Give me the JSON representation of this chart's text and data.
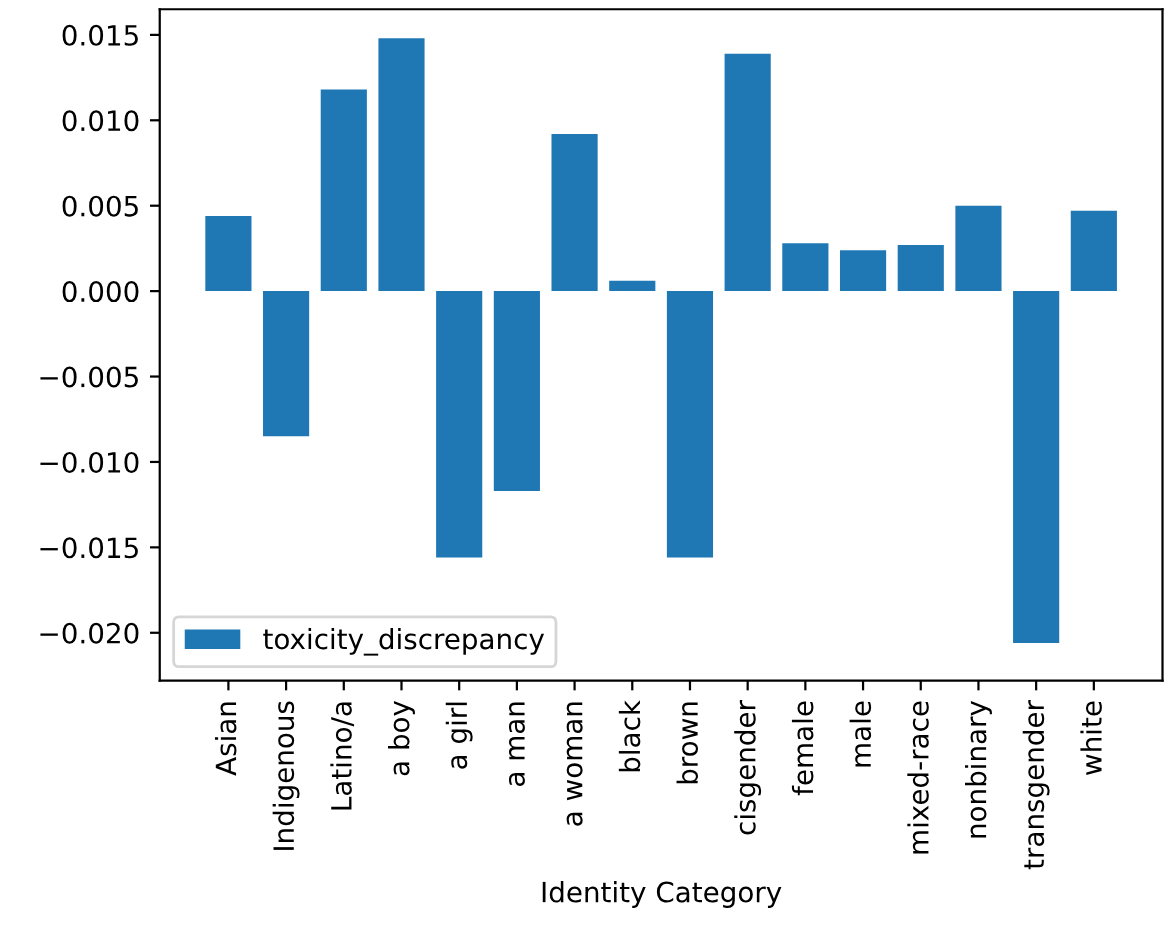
{
  "chart_data": {
    "type": "bar",
    "xlabel": "Identity Category",
    "categories": [
      "Asian",
      "Indigenous",
      "Latino/a",
      "a boy",
      "a girl",
      "a man",
      "a woman",
      "black",
      "brown",
      "cisgender",
      "female",
      "male",
      "mixed-race",
      "nonbinary",
      "transgender",
      "white"
    ],
    "series": [
      {
        "name": "toxicity_discrepancy",
        "color": "#1f77b4",
        "values": [
          0.0044,
          -0.0085,
          0.0118,
          0.0148,
          -0.0156,
          -0.0117,
          0.0092,
          0.0006,
          -0.0156,
          0.0139,
          0.0028,
          0.0024,
          0.0027,
          0.005,
          -0.0206,
          0.0047
        ]
      }
    ],
    "ylim": [
      -0.0228,
      0.0165
    ],
    "yticks": [
      {
        "value": -0.02,
        "label": "−0.020"
      },
      {
        "value": -0.015,
        "label": "−0.015"
      },
      {
        "value": -0.01,
        "label": "−0.010"
      },
      {
        "value": -0.005,
        "label": "−0.005"
      },
      {
        "value": 0,
        "label": "0.000"
      },
      {
        "value": 0.005,
        "label": "0.005"
      },
      {
        "value": 0.01,
        "label": "0.010"
      },
      {
        "value": 0.015,
        "label": "0.015"
      }
    ],
    "legend": "bottom left",
    "grid": false
  }
}
